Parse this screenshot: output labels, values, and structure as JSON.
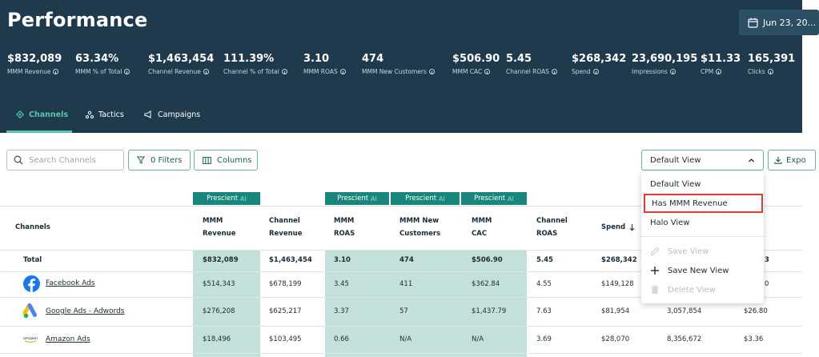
{
  "header": {
    "title": "Performance",
    "date_label": "Jun 23, 20..."
  },
  "metrics": [
    {
      "value": "$832,089",
      "label": "MMM Revenue"
    },
    {
      "value": "63.34%",
      "label": "MMM % of Total"
    },
    {
      "value": "$1,463,454",
      "label": "Channel Revenue"
    },
    {
      "value": "111.39%",
      "label": "Channel % of Total"
    },
    {
      "value": "3.10",
      "label": "MMM ROAS"
    },
    {
      "value": "474",
      "label": "MMM New Customers"
    },
    {
      "value": "$506.90",
      "label": "MMM CAC"
    },
    {
      "value": "5.45",
      "label": "Channel ROAS"
    },
    {
      "value": "$268,342",
      "label": "Spend"
    },
    {
      "value": "23,690,195",
      "label": "Impressions"
    },
    {
      "value": "$11.33",
      "label": "CPM"
    },
    {
      "value": "165,391",
      "label": "Clicks"
    }
  ],
  "tabs": [
    {
      "label": "Channels",
      "active": true
    },
    {
      "label": "Tactics",
      "active": false
    },
    {
      "label": "Campaigns",
      "active": false
    }
  ],
  "toolbar": {
    "search_placeholder": "Search Channels",
    "filters_label": "0 Filters",
    "columns_label": "Columns",
    "view_selected": "Default View",
    "export_label": "Expo"
  },
  "badge": {
    "label": "Prescient",
    "ai": "AI"
  },
  "table": {
    "headers": {
      "channels": "Channels",
      "mmm_revenue": [
        "MMM",
        "Revenue"
      ],
      "channel_revenue": [
        "Channel",
        "Revenue"
      ],
      "mmm_roas": [
        "MMM",
        "ROAS"
      ],
      "mmm_new_customers": [
        "MMM New",
        "Customers"
      ],
      "mmm_cac": [
        "MMM",
        "CAC"
      ],
      "channel_roas": [
        "Channel",
        "ROAS"
      ],
      "spend": "Spend"
    },
    "total": {
      "label": "Total",
      "mmm_revenue": "$832,089",
      "channel_revenue": "$1,463,454",
      "mmm_roas": "3.10",
      "mmm_new_customers": "474",
      "mmm_cac": "$506.90",
      "channel_roas": "5.45",
      "spend": "$268,342",
      "extra": "3"
    },
    "rows": [
      {
        "channel": "Facebook Ads",
        "logo": "facebook-logo",
        "mmm_revenue": "$514,343",
        "channel_revenue": "$678,199",
        "mmm_roas": "3.45",
        "mmm_new_customers": "411",
        "mmm_cac": "$362.84",
        "channel_roas": "4.55",
        "spend": "$149,128",
        "impressions": "",
        "cpm": "0"
      },
      {
        "channel": "Google Ads - Adwords",
        "logo": "google-ads-logo",
        "mmm_revenue": "$276,208",
        "channel_revenue": "$625,217",
        "mmm_roas": "3.37",
        "mmm_new_customers": "57",
        "mmm_cac": "$1,437.79",
        "channel_roas": "7.63",
        "spend": "$81,954",
        "impressions": "3,057,854",
        "cpm": "$26.80"
      },
      {
        "channel": "Amazon Ads",
        "logo": "amazon-logo",
        "mmm_revenue": "$18,496",
        "channel_revenue": "$103,495",
        "mmm_roas": "0.66",
        "mmm_new_customers": "N/A",
        "mmm_cac": "N/A",
        "channel_roas": "3.69",
        "spend": "$28,070",
        "impressions": "8,356,672",
        "cpm": "$3.36"
      }
    ]
  },
  "menu": {
    "views": [
      "Default View",
      "Has MMM Revenue",
      "Halo View"
    ],
    "actions": [
      {
        "label": "Save View",
        "icon": "pencil-icon",
        "disabled": true
      },
      {
        "label": "Save New View",
        "icon": "plus-icon",
        "disabled": false
      },
      {
        "label": "Delete View",
        "icon": "trash-icon",
        "disabled": true
      }
    ]
  },
  "colors": {
    "header_bg": "#1e3a4c",
    "accent": "#58c7ab",
    "badge_bg": "#17877b",
    "shade": "#c3e0da",
    "highlight_border": "#e53935"
  }
}
